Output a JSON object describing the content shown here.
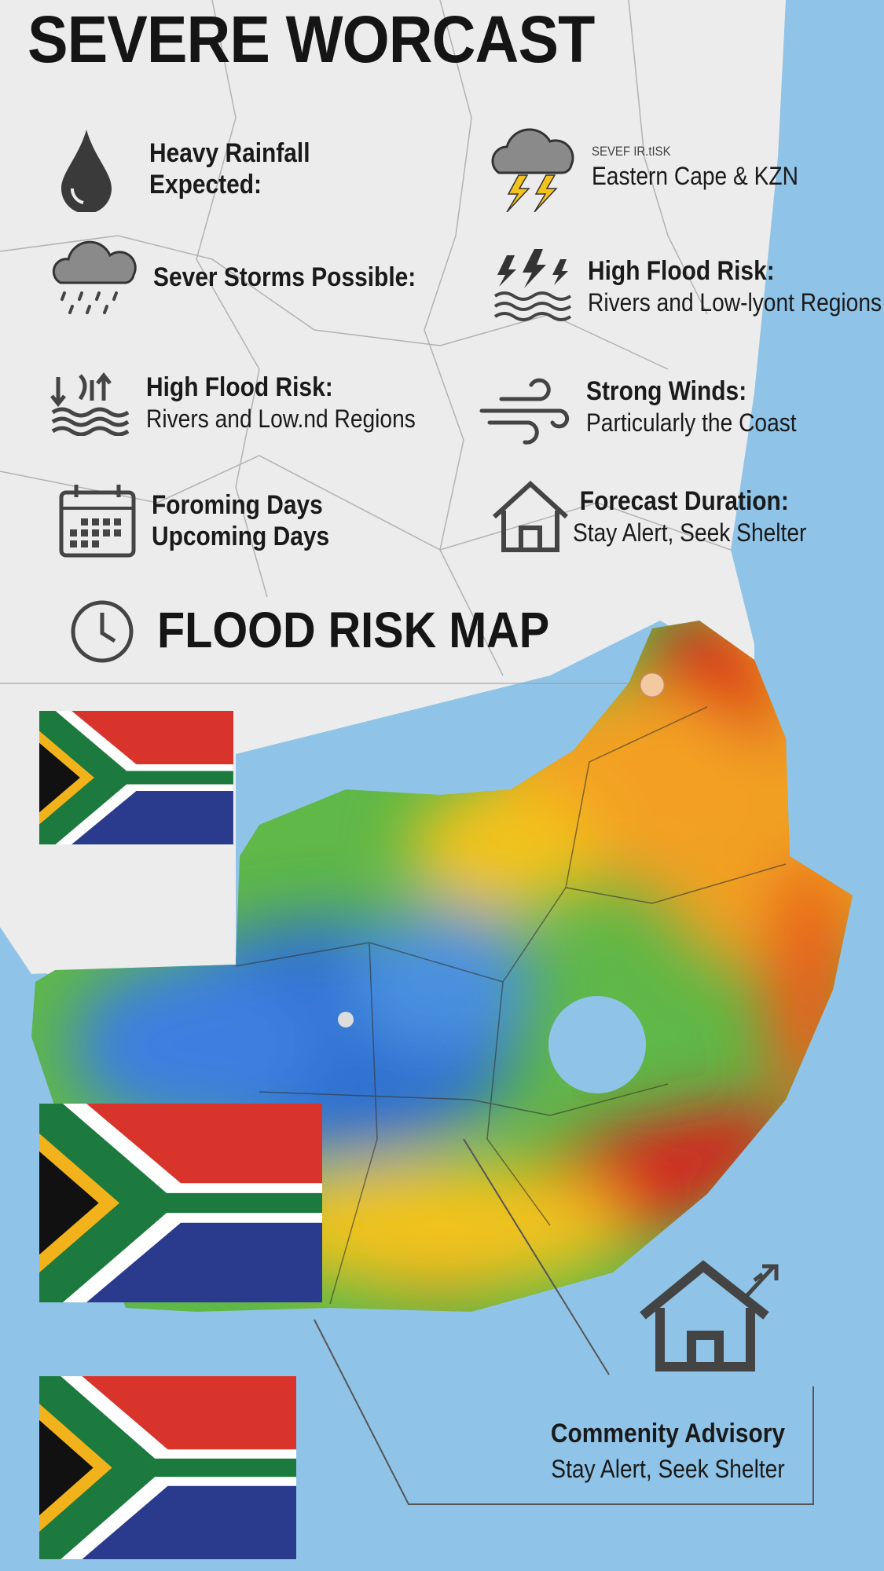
{
  "header": {
    "title": "SEVERE WORCAST"
  },
  "items": [
    {
      "icon": "raindrop-icon",
      "heading": "Heavy Rainfall",
      "sub": "Expected:"
    },
    {
      "icon": "thunder-cloud-icon",
      "label": "SEVEF IR.tISK",
      "sub": "Eastern Cape & KZN"
    },
    {
      "icon": "rain-cloud-icon",
      "heading": "Sever Storms Possible:"
    },
    {
      "icon": "lightning-waves-icon",
      "heading": "High Flood Risk:",
      "sub": "Rivers and Low-lyont Regions"
    },
    {
      "icon": "flood-arrows-icon",
      "heading": "High Flood Risk:",
      "sub": "Rivers and Low.nd Regions"
    },
    {
      "icon": "wind-icon",
      "heading": "Strong Winds:",
      "sub": "Particularly the Coast"
    },
    {
      "icon": "calendar-icon",
      "heading": "Foroming Days",
      "sub": "Upcoming Days"
    },
    {
      "icon": "house-icon",
      "heading": "Forecast Duration:",
      "sub": "Stay Alert, Seek Shelter"
    }
  ],
  "map_section": {
    "icon": "clock-icon",
    "title": "FLOOD RISK MAP"
  },
  "advisory": {
    "icon": "house-icon",
    "title": "Commenity Advisory",
    "sub": "Stay Alert, Seek Shelter"
  },
  "colors": {
    "sea": "#8fc4e8",
    "land": "#ececec",
    "low_risk": "#2f6fd0",
    "medium_risk": "#f3c21d",
    "high_risk": "#d8201c"
  }
}
